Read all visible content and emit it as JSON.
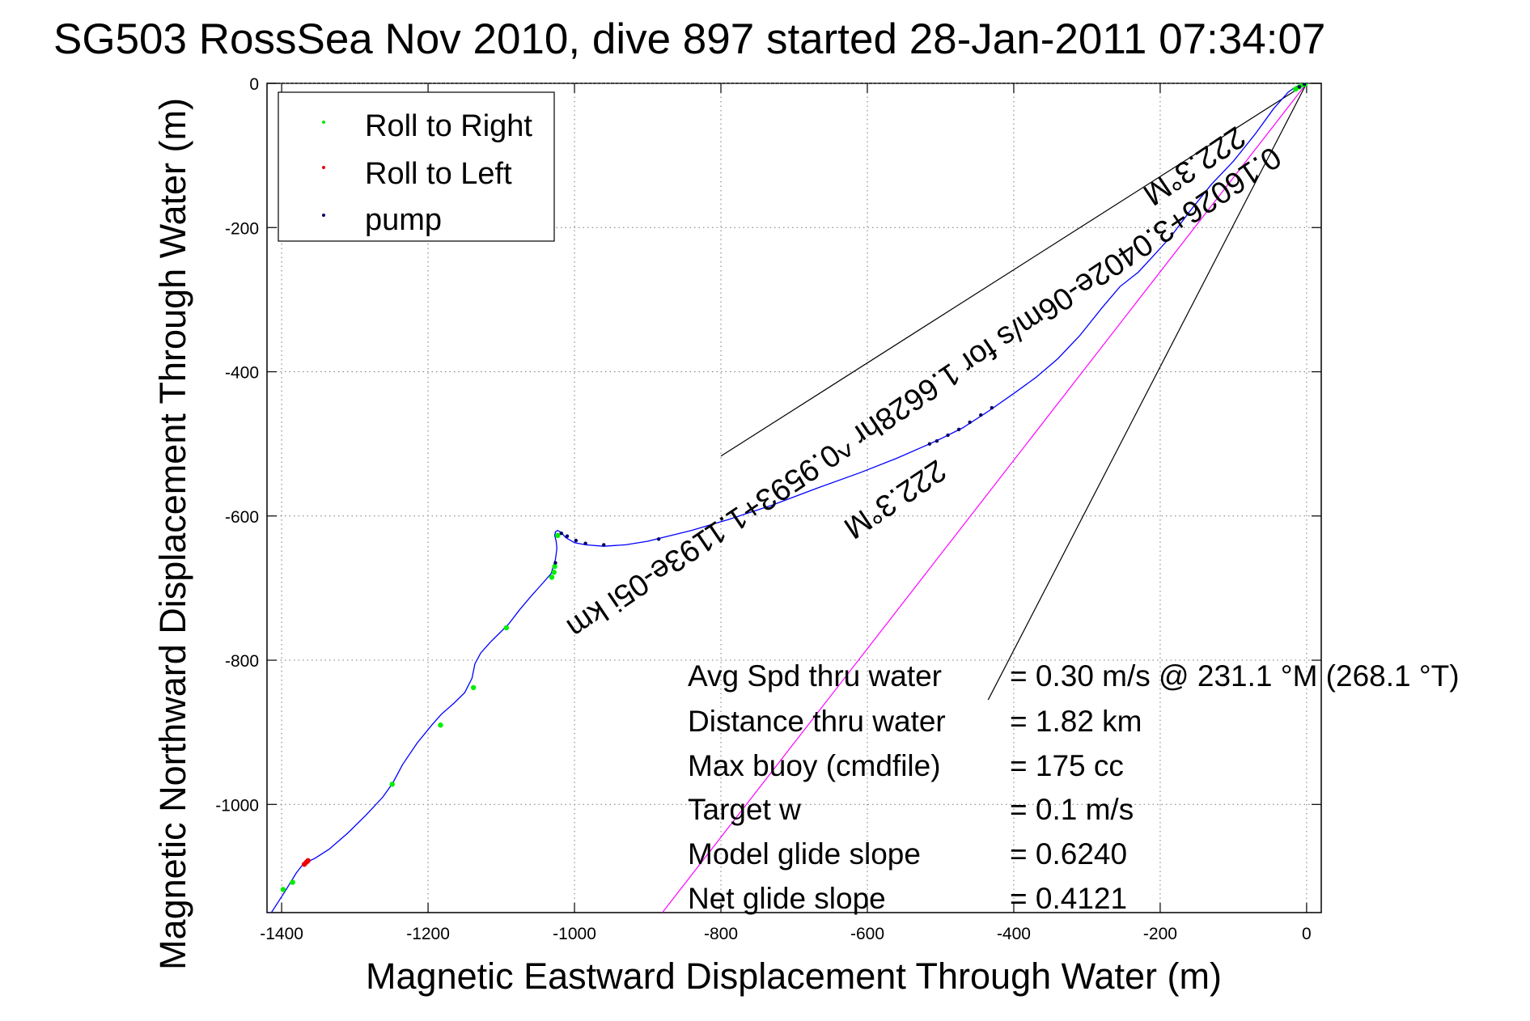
{
  "chart_data": {
    "type": "line",
    "title": "SG503 RossSea Nov 2010, dive 897 started 28-Jan-2011 07:34:07",
    "xlabel": "Magnetic Eastward Displacement Through Water (m)",
    "ylabel": "Magnetic Northward Displacement Through Water (m)",
    "xlim": [
      -1420,
      20
    ],
    "ylim": [
      -1150,
      0
    ],
    "x_ticks": [
      -1400,
      -1200,
      -1000,
      -800,
      -600,
      -400,
      -200,
      0
    ],
    "y_ticks": [
      0,
      -200,
      -400,
      -600,
      -800,
      -1000
    ],
    "x_tick_labels": [
      "-1400",
      "-1200",
      "-1000",
      "-800",
      "-600",
      "-400",
      "-200",
      "0"
    ],
    "y_tick_labels": [
      "0",
      "-200",
      "-400",
      "-600",
      "-800",
      "-1000"
    ],
    "grid": true,
    "legend": {
      "position": "top-left",
      "entries": [
        {
          "label": "Roll to Right",
          "color": "#00ee00"
        },
        {
          "label": "Roll to Left",
          "color": "#ee0000"
        },
        {
          "label": "pump",
          "color": "#000066"
        }
      ]
    },
    "series": [
      {
        "color": "#0000ff",
        "x": [
          -1414,
          -1395,
          -1380,
          -1370,
          -1355,
          -1335,
          -1310,
          -1285,
          -1262,
          -1248,
          -1235,
          -1215,
          -1195,
          -1182,
          -1165,
          -1150,
          -1140,
          -1136,
          -1128,
          -1115,
          -1100,
          -1090,
          -1075,
          -1060,
          -1045,
          -1032,
          -1026,
          -1024,
          -1025,
          -1027,
          -1026,
          -1023,
          -1018,
          -1012,
          -1000,
          -985,
          -960,
          -930,
          -900,
          -880,
          -840,
          -790,
          -730,
          -670,
          -610,
          -560,
          -515,
          -500,
          -470,
          -435,
          -400,
          -370,
          -340,
          -310,
          -280,
          -255,
          -230,
          -210,
          -185,
          -160,
          -130,
          -100,
          -70,
          -45,
          -25,
          -15,
          -5,
          0
        ],
        "y": [
          -1150,
          -1120,
          -1095,
          -1082,
          -1075,
          -1062,
          -1040,
          -1015,
          -990,
          -970,
          -945,
          -915,
          -890,
          -875,
          -860,
          -845,
          -825,
          -805,
          -790,
          -775,
          -760,
          -750,
          -730,
          -712,
          -695,
          -680,
          -660,
          -645,
          -635,
          -627,
          -622,
          -620,
          -623,
          -630,
          -637,
          -640,
          -642,
          -640,
          -635,
          -630,
          -620,
          -605,
          -585,
          -562,
          -540,
          -520,
          -500,
          -493,
          -478,
          -455,
          -430,
          -408,
          -382,
          -350,
          -312,
          -282,
          -262,
          -240,
          -212,
          -178,
          -140,
          -108,
          -70,
          -35,
          -12,
          -5,
          -1,
          0
        ]
      }
    ],
    "magenta_line": {
      "x": [
        -880,
        0
      ],
      "y": [
        -1150,
        0
      ]
    },
    "reference_lines": [
      {
        "x": [
          -800,
          0
        ],
        "y": [
          -517,
          0
        ]
      },
      {
        "x": [
          -435,
          0
        ],
        "y": [
          -855,
          0
        ]
      }
    ],
    "markers": {
      "roll_right": {
        "x": [
          -1398,
          -1385,
          -1249,
          -1183,
          -1138,
          -1093,
          -1031,
          -1028,
          -1027,
          -1023,
          -15,
          -10,
          -5,
          -2
        ],
        "y": [
          -1118,
          -1108,
          -972,
          -890,
          -838,
          -755,
          -685,
          -678,
          -670,
          -627,
          -8,
          -5,
          -2,
          -1
        ]
      },
      "roll_left": {
        "x": [
          -1369,
          -1366,
          -1364
        ],
        "y": [
          -1083,
          -1080,
          -1078
        ]
      },
      "pump": {
        "x": [
          -1026,
          -1018,
          -1010,
          -998,
          -985,
          -960,
          -885,
          -515,
          -505,
          -490,
          -475,
          -460,
          -445,
          -430,
          -10,
          -3
        ],
        "y": [
          -665,
          -624,
          -628,
          -634,
          -638,
          -640,
          -632,
          -500,
          -496,
          -488,
          -480,
          -470,
          -460,
          -450,
          -5,
          -1
        ]
      }
    },
    "annotations": {
      "heading_lower": "222.3°M",
      "heading_upper": "222.3°M",
      "regression": "0.16026+3.0402e-06m/s for 1.6628hr ^0.9593+1.1193e-05i km",
      "stats": [
        {
          "label": "Avg Spd thru water",
          "value": "=  0.30 m/s @ 231.1  °M (268.1 °T)"
        },
        {
          "label": "Distance thru water",
          "value": "=  1.82 km"
        },
        {
          "label": "Max buoy (cmdfile)",
          "value": "= 175 cc"
        },
        {
          "label": "Target w",
          "value": "= 0.1 m/s"
        },
        {
          "label": "Model glide slope",
          "value": "= 0.6240"
        },
        {
          "label": "Net glide slope",
          "value": "= 0.4121"
        }
      ]
    }
  }
}
